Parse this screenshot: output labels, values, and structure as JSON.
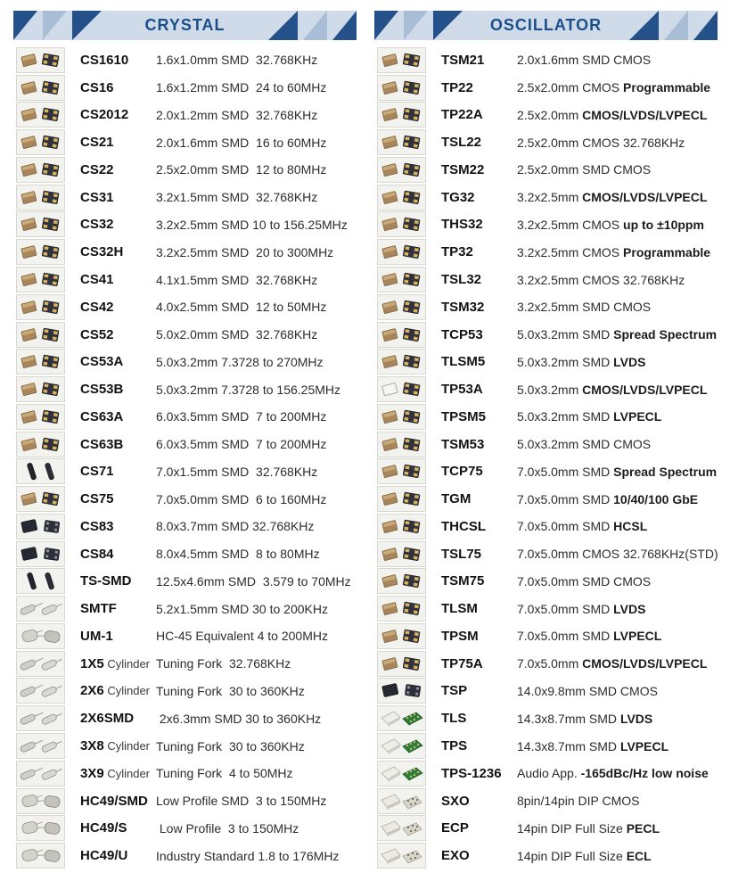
{
  "colors": {
    "header_bg": "#cfdbe9",
    "navy_triangle": "#24518a",
    "gray_triangle": "#a9bdd6",
    "title_text": "#1b4f8c"
  },
  "columns": [
    {
      "title": "CRYSTAL",
      "rows": [
        {
          "model": "CS1610",
          "suffix": "",
          "desc": "1.6x1.0mm SMD  32.768KHz",
          "desc_bold": "",
          "icon": "chips"
        },
        {
          "model": "CS16",
          "suffix": "",
          "desc": "1.6x1.2mm SMD  24 to 60MHz",
          "desc_bold": "",
          "icon": "chips"
        },
        {
          "model": "CS2012",
          "suffix": "",
          "desc": "2.0x1.2mm SMD  32.768KHz",
          "desc_bold": "",
          "icon": "chips"
        },
        {
          "model": "CS21",
          "suffix": "",
          "desc": "2.0x1.6mm SMD  16 to 60MHz",
          "desc_bold": "",
          "icon": "chips"
        },
        {
          "model": "CS22",
          "suffix": "",
          "desc": "2.5x2.0mm SMD  12 to 80MHz",
          "desc_bold": "",
          "icon": "chips"
        },
        {
          "model": "CS31",
          "suffix": "",
          "desc": "3.2x1.5mm SMD  32.768KHz",
          "desc_bold": "",
          "icon": "chips"
        },
        {
          "model": "CS32",
          "suffix": "",
          "desc": "3.2x2.5mm SMD 10 to 156.25MHz",
          "desc_bold": "",
          "icon": "chips"
        },
        {
          "model": "CS32H",
          "suffix": "",
          "desc": "3.2x2.5mm SMD  20 to 300MHz",
          "desc_bold": "",
          "icon": "chips"
        },
        {
          "model": "CS41",
          "suffix": "",
          "desc": "4.1x1.5mm SMD  32.768KHz",
          "desc_bold": "",
          "icon": "chips"
        },
        {
          "model": "CS42",
          "suffix": "",
          "desc": "4.0x2.5mm SMD  12 to 50MHz",
          "desc_bold": "",
          "icon": "chips"
        },
        {
          "model": "CS52",
          "suffix": "",
          "desc": "5.0x2.0mm SMD  32.768KHz",
          "desc_bold": "",
          "icon": "chips"
        },
        {
          "model": "CS53A",
          "suffix": "",
          "desc": "5.0x3.2mm 7.3728 to 270MHz",
          "desc_bold": "",
          "icon": "chips"
        },
        {
          "model": "CS53B",
          "suffix": "",
          "desc": "5.0x3.2mm 7.3728 to 156.25MHz",
          "desc_bold": "",
          "icon": "chips"
        },
        {
          "model": "CS63A",
          "suffix": "",
          "desc": "6.0x3.5mm SMD  7 to 200MHz",
          "desc_bold": "",
          "icon": "chips"
        },
        {
          "model": "CS63B",
          "suffix": "",
          "desc": "6.0x3.5mm SMD  7 to 200MHz",
          "desc_bold": "",
          "icon": "chips"
        },
        {
          "model": "CS71",
          "suffix": "",
          "desc": "7.0x1.5mm SMD  32.768KHz",
          "desc_bold": "",
          "icon": "bars"
        },
        {
          "model": "CS75",
          "suffix": "",
          "desc": "7.0x5.0mm SMD  6 to 160MHz",
          "desc_bold": "",
          "icon": "chips"
        },
        {
          "model": "CS83",
          "suffix": "",
          "desc": "8.0x3.7mm SMD 32.768KHz",
          "desc_bold": "",
          "icon": "darkpair"
        },
        {
          "model": "CS84",
          "suffix": "",
          "desc": "8.0x4.5mm SMD  8 to 80MHz",
          "desc_bold": "",
          "icon": "darkpair"
        },
        {
          "model": "TS-SMD",
          "suffix": "",
          "desc": "12.5x4.6mm SMD  3.579 to 70MHz",
          "desc_bold": "",
          "icon": "bars"
        },
        {
          "model": "SMTF",
          "suffix": "",
          "desc": "5.2x1.5mm SMD 30 to 200KHz",
          "desc_bold": "",
          "icon": "cylinder"
        },
        {
          "model": "UM-1",
          "suffix": "",
          "desc": "HC-45 Equivalent 4 to 200MHz",
          "desc_bold": "",
          "icon": "can"
        },
        {
          "model": "1X5",
          "suffix": "Cylinder",
          "desc": "Tuning Fork  32.768KHz",
          "desc_bold": "",
          "icon": "cylinder"
        },
        {
          "model": "2X6",
          "suffix": "Cylinder",
          "desc": "Tuning Fork  30 to 360KHz",
          "desc_bold": "",
          "icon": "cylinder"
        },
        {
          "model": "2X6SMD",
          "suffix": "",
          "desc": " 2x6.3mm SMD 30 to 360KHz",
          "desc_bold": "",
          "icon": "cylinder"
        },
        {
          "model": "3X8",
          "suffix": "Cylinder",
          "desc": "Tuning Fork  30 to 360KHz",
          "desc_bold": "",
          "icon": "cylinder"
        },
        {
          "model": "3X9",
          "suffix": "Cylinder",
          "desc": "Tuning Fork  4 to 50MHz",
          "desc_bold": "",
          "icon": "cylinder"
        },
        {
          "model": "HC49/SMD",
          "suffix": "",
          "desc": "Low Profile SMD  3 to 150MHz",
          "desc_bold": "",
          "icon": "can"
        },
        {
          "model": "HC49/S",
          "suffix": "",
          "desc": " Low Profile  3 to 150MHz",
          "desc_bold": "",
          "icon": "can"
        },
        {
          "model": "HC49/U",
          "suffix": "",
          "desc": "Industry Standard 1.8 to 176MHz",
          "desc_bold": "",
          "icon": "can"
        }
      ]
    },
    {
      "title": "OSCILLATOR",
      "rows": [
        {
          "model": "TSM21",
          "suffix": "",
          "desc": "2.0x1.6mm SMD CMOS",
          "desc_bold": "",
          "icon": "chips"
        },
        {
          "model": "TP22",
          "suffix": "",
          "desc": "2.5x2.0mm CMOS ",
          "desc_bold": "Programmable",
          "icon": "chips"
        },
        {
          "model": "TP22A",
          "suffix": "",
          "desc": "2.5x2.0mm ",
          "desc_bold": "CMOS/LVDS/LVPECL",
          "icon": "chips"
        },
        {
          "model": "TSL22",
          "suffix": "",
          "desc": "2.5x2.0mm CMOS 32.768KHz",
          "desc_bold": "",
          "icon": "chips"
        },
        {
          "model": "TSM22",
          "suffix": "",
          "desc": "2.5x2.0mm SMD CMOS",
          "desc_bold": "",
          "icon": "chips"
        },
        {
          "model": "TG32",
          "suffix": "",
          "desc": "3.2x2.5mm ",
          "desc_bold": "CMOS/LVDS/LVPECL",
          "icon": "chips"
        },
        {
          "model": "THS32",
          "suffix": "",
          "desc": "3.2x2.5mm CMOS ",
          "desc_bold": "up to ±10ppm",
          "icon": "chips"
        },
        {
          "model": "TP32",
          "suffix": "",
          "desc": "3.2x2.5mm CMOS ",
          "desc_bold": "Programmable",
          "icon": "chips"
        },
        {
          "model": "TSL32",
          "suffix": "",
          "desc": "3.2x2.5mm CMOS 32.768KHz",
          "desc_bold": "",
          "icon": "chips"
        },
        {
          "model": "TSM32",
          "suffix": "",
          "desc": "3.2x2.5mm SMD CMOS",
          "desc_bold": "",
          "icon": "chips"
        },
        {
          "model": "TCP53",
          "suffix": "",
          "desc": "5.0x3.2mm SMD ",
          "desc_bold": "Spread Spectrum",
          "icon": "chips"
        },
        {
          "model": "TLSM5",
          "suffix": "",
          "desc": "5.0x3.2mm SMD ",
          "desc_bold": "LVDS",
          "icon": "chips"
        },
        {
          "model": "TP53A",
          "suffix": "",
          "desc": "5.0x3.2mm ",
          "desc_bold": "CMOS/LVDS/LVPECL",
          "icon": "whitedark"
        },
        {
          "model": "TPSM5",
          "suffix": "",
          "desc": "5.0x3.2mm SMD ",
          "desc_bold": "LVPECL",
          "icon": "chips"
        },
        {
          "model": "TSM53",
          "suffix": "",
          "desc": "5.0x3.2mm SMD CMOS",
          "desc_bold": "",
          "icon": "chips"
        },
        {
          "model": "TCP75",
          "suffix": "",
          "desc": "7.0x5.0mm SMD ",
          "desc_bold": "Spread Spectrum",
          "icon": "chips"
        },
        {
          "model": "TGM",
          "suffix": "",
          "desc": "7.0x5.0mm SMD ",
          "desc_bold": "10/40/100 GbE",
          "icon": "chips"
        },
        {
          "model": "THCSL",
          "suffix": "",
          "desc": "7.0x5.0mm SMD ",
          "desc_bold": "HCSL",
          "icon": "chips"
        },
        {
          "model": "TSL75",
          "suffix": "",
          "desc": "7.0x5.0mm CMOS 32.768KHz(STD)",
          "desc_bold": "",
          "icon": "chips"
        },
        {
          "model": "TSM75",
          "suffix": "",
          "desc": "7.0x5.0mm SMD CMOS",
          "desc_bold": "",
          "icon": "chips"
        },
        {
          "model": "TLSM",
          "suffix": "",
          "desc": "7.0x5.0mm SMD ",
          "desc_bold": "LVDS",
          "icon": "chips"
        },
        {
          "model": "TPSM",
          "suffix": "",
          "desc": "7.0x5.0mm SMD ",
          "desc_bold": "LVPECL",
          "icon": "chips"
        },
        {
          "model": "TP75A",
          "suffix": "",
          "desc": "7.0x5.0mm ",
          "desc_bold": "CMOS/LVDS/LVPECL",
          "icon": "chips"
        },
        {
          "model": "TSP",
          "suffix": "",
          "desc": "14.0x9.8mm SMD CMOS",
          "desc_bold": "",
          "icon": "darkpair"
        },
        {
          "model": "TLS",
          "suffix": "",
          "desc": "14.3x8.7mm SMD ",
          "desc_bold": "LVDS",
          "icon": "pcb"
        },
        {
          "model": "TPS",
          "suffix": "",
          "desc": "14.3x8.7mm SMD ",
          "desc_bold": "LVPECL",
          "icon": "pcb"
        },
        {
          "model": "TPS-1236",
          "suffix": "",
          "desc": "Audio App. ",
          "desc_bold": "-165dBc/Hz low noise",
          "icon": "pcb"
        },
        {
          "model": "SXO",
          "suffix": "",
          "desc": "8pin/14pin DIP CMOS",
          "desc_bold": "",
          "icon": "dip"
        },
        {
          "model": "ECP",
          "suffix": "",
          "desc": "14pin DIP Full Size ",
          "desc_bold": "PECL",
          "icon": "dip"
        },
        {
          "model": "EXO",
          "suffix": "",
          "desc": "14pin DIP Full Size ",
          "desc_bold": "ECL",
          "icon": "dip"
        }
      ]
    }
  ]
}
